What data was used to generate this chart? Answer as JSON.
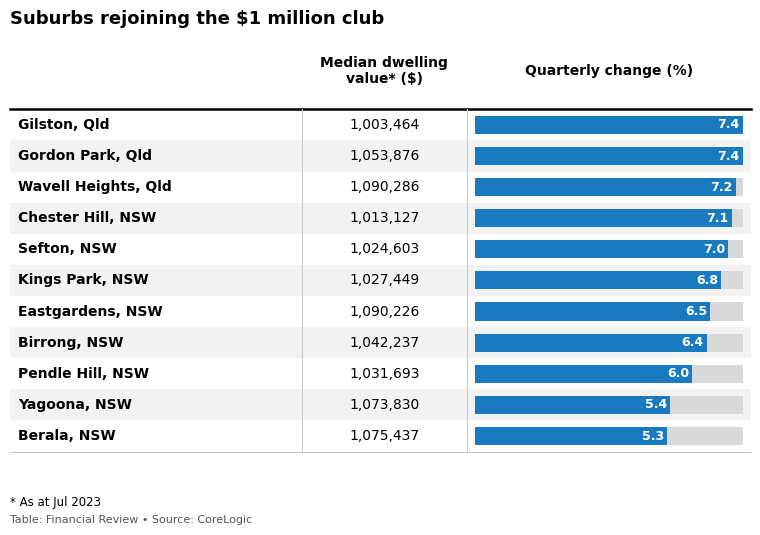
{
  "title": "Suburbs rejoining the $1 million club",
  "col1_header": "Median dwelling\nvalue* ($)",
  "col2_header": "Quarterly change (%)",
  "suburbs": [
    "Gilston, Qld",
    "Gordon Park, Qld",
    "Wavell Heights, Qld",
    "Chester Hill, NSW",
    "Sefton, NSW",
    "Kings Park, NSW",
    "Eastgardens, NSW",
    "Birrong, NSW",
    "Pendle Hill, NSW",
    "Yagoona, NSW",
    "Berala, NSW"
  ],
  "median_values": [
    "1,003,464",
    "1,053,876",
    "1,090,286",
    "1,013,127",
    "1,024,603",
    "1,027,449",
    "1,090,226",
    "1,042,237",
    "1,031,693",
    "1,073,830",
    "1,075,437"
  ],
  "quarterly_changes": [
    7.4,
    7.4,
    7.2,
    7.1,
    7.0,
    6.8,
    6.5,
    6.4,
    6.0,
    5.4,
    5.3
  ],
  "bar_color": "#1a7abf",
  "bar_bg_color": "#d9d9d9",
  "row_alt_color": "#f2f2f2",
  "row_white_color": "#ffffff",
  "bar_max": 7.4,
  "footer_note": "* As at Jul 2023",
  "footer_source": "Table: Financial Review • Source: CoreLogic",
  "title_fontsize": 13,
  "header_fontsize": 10,
  "cell_fontsize": 10,
  "bar_label_fontsize": 9
}
